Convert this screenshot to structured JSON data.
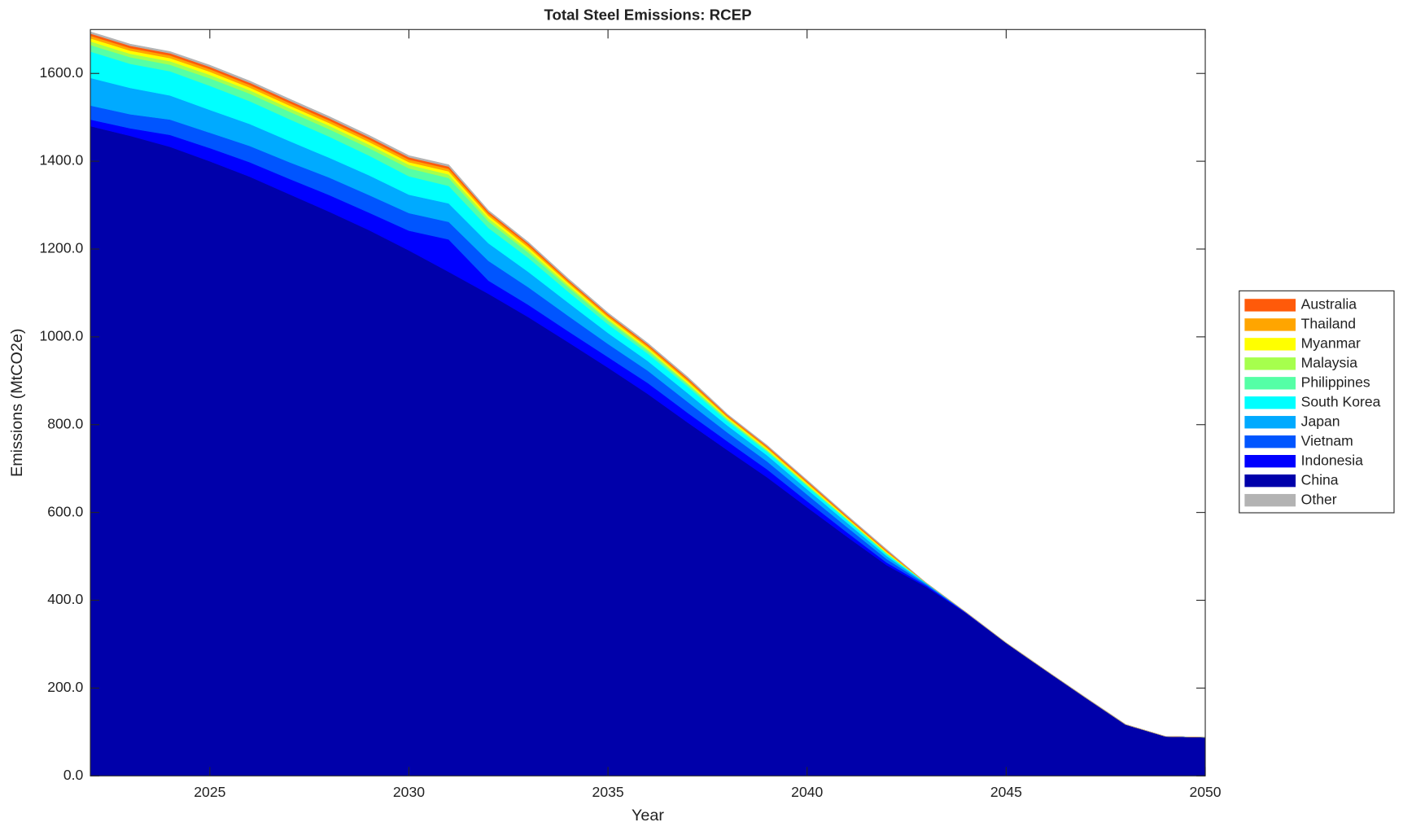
{
  "chart_data": {
    "type": "stacked-area",
    "title": "Total Steel Emissions: RCEP",
    "xlabel": "Year",
    "ylabel": "Emissions (MtCO2e)",
    "x": [
      2022,
      2023,
      2024,
      2025,
      2026,
      2027,
      2028,
      2029,
      2030,
      2031,
      2032,
      2033,
      2034,
      2035,
      2036,
      2037,
      2038,
      2039,
      2040,
      2041,
      2042,
      2043,
      2044,
      2045,
      2046,
      2047,
      2048,
      2049,
      2050
    ],
    "xlim": [
      2022,
      2050
    ],
    "xticks": [
      2025,
      2030,
      2035,
      2040,
      2045,
      2050
    ],
    "ylim": [
      0,
      1700
    ],
    "yticks": [
      {
        "value": 0,
        "label": "0.0"
      },
      {
        "value": 200,
        "label": "200.0"
      },
      {
        "value": 400,
        "label": "400.0"
      },
      {
        "value": 600,
        "label": "600.0"
      },
      {
        "value": 800,
        "label": "800.0"
      },
      {
        "value": 1000,
        "label": "1000.0"
      },
      {
        "value": 1200,
        "label": "1200.0"
      },
      {
        "value": 1400,
        "label": "1400.0"
      },
      {
        "value": 1600,
        "label": "1600.0"
      }
    ],
    "legend": "right",
    "series": [
      {
        "name": "Australia",
        "color": "#ff5a0a",
        "values": [
          5,
          5,
          5,
          5,
          5,
          5,
          5,
          5,
          5,
          5,
          4,
          4,
          3,
          3,
          3,
          3,
          2,
          2,
          2,
          2,
          2,
          0,
          0,
          0,
          0,
          0,
          0,
          0,
          0
        ]
      },
      {
        "name": "Thailand",
        "color": "#ffa500",
        "values": [
          6,
          6,
          6,
          6,
          6,
          6,
          6,
          6,
          6,
          6,
          5,
          5,
          4,
          4,
          4,
          4,
          3,
          3,
          3,
          2,
          2,
          0,
          0,
          0,
          0,
          0,
          0,
          0,
          0
        ]
      },
      {
        "name": "Myanmar",
        "color": "#ffff00",
        "values": [
          7,
          7,
          7,
          7,
          6,
          6,
          6,
          6,
          6,
          7,
          6,
          6,
          5,
          4,
          4,
          4,
          3,
          3,
          3,
          2,
          2,
          0,
          0,
          0,
          0,
          0,
          0,
          0,
          0
        ]
      },
      {
        "name": "Malaysia",
        "color": "#a6ff4d",
        "values": [
          8,
          8,
          8,
          8,
          8,
          8,
          8,
          8,
          8,
          8,
          7,
          6,
          5,
          4,
          4,
          3,
          2,
          2,
          1,
          1,
          1,
          0,
          0,
          0,
          0,
          0,
          0,
          0,
          0
        ]
      },
      {
        "name": "Philippines",
        "color": "#55ffa6",
        "values": [
          15,
          15,
          15,
          17,
          17,
          17,
          17,
          17,
          18,
          18,
          15,
          12,
          10,
          8,
          6,
          5,
          4,
          3,
          3,
          2,
          2,
          0,
          0,
          0,
          0,
          0,
          0,
          0,
          0
        ]
      },
      {
        "name": "South Korea",
        "color": "#00ffff",
        "values": [
          60,
          55,
          55,
          55,
          52,
          50,
          48,
          45,
          42,
          40,
          35,
          32,
          25,
          20,
          17,
          15,
          10,
          8,
          7,
          6,
          4,
          1,
          0,
          0,
          0,
          0,
          0,
          0,
          0
        ]
      },
      {
        "name": "Japan",
        "color": "#00aaff",
        "values": [
          63,
          60,
          55,
          52,
          50,
          48,
          45,
          45,
          42,
          42,
          40,
          35,
          30,
          25,
          22,
          20,
          16,
          14,
          12,
          10,
          7,
          2,
          0,
          0,
          0,
          0,
          0,
          0,
          0
        ]
      },
      {
        "name": "Vietnam",
        "color": "#0055ff",
        "values": [
          32,
          32,
          35,
          35,
          37,
          38,
          40,
          40,
          40,
          40,
          45,
          40,
          35,
          30,
          28,
          25,
          20,
          18,
          15,
          12,
          8,
          3,
          0,
          0,
          0,
          0,
          0,
          0,
          0
        ]
      },
      {
        "name": "Indonesia",
        "color": "#0000ff",
        "values": [
          15,
          17,
          27,
          30,
          33,
          35,
          38,
          40,
          45,
          74,
          30,
          28,
          25,
          24,
          25,
          22,
          20,
          18,
          14,
          10,
          6,
          3,
          2,
          0,
          0,
          0,
          0,
          0,
          0
        ]
      },
      {
        "name": "China",
        "color": "#0000aa",
        "values": [
          1480,
          1458,
          1433,
          1400,
          1365,
          1325,
          1285,
          1243,
          1197,
          1148,
          1098,
          1045,
          988,
          930,
          870,
          805,
          742,
          680,
          612,
          545,
          480,
          430,
          370,
          303,
          240,
          178,
          117,
          90,
          88
        ]
      },
      {
        "name": "Other",
        "color": "#b3b3b3",
        "values": [
          4,
          4,
          4,
          4,
          4,
          4,
          4,
          4,
          4,
          4,
          3,
          3,
          3,
          3,
          3,
          3,
          2,
          2,
          2,
          2,
          2,
          0,
          0,
          0,
          0,
          0,
          0,
          0,
          0
        ]
      }
    ]
  }
}
